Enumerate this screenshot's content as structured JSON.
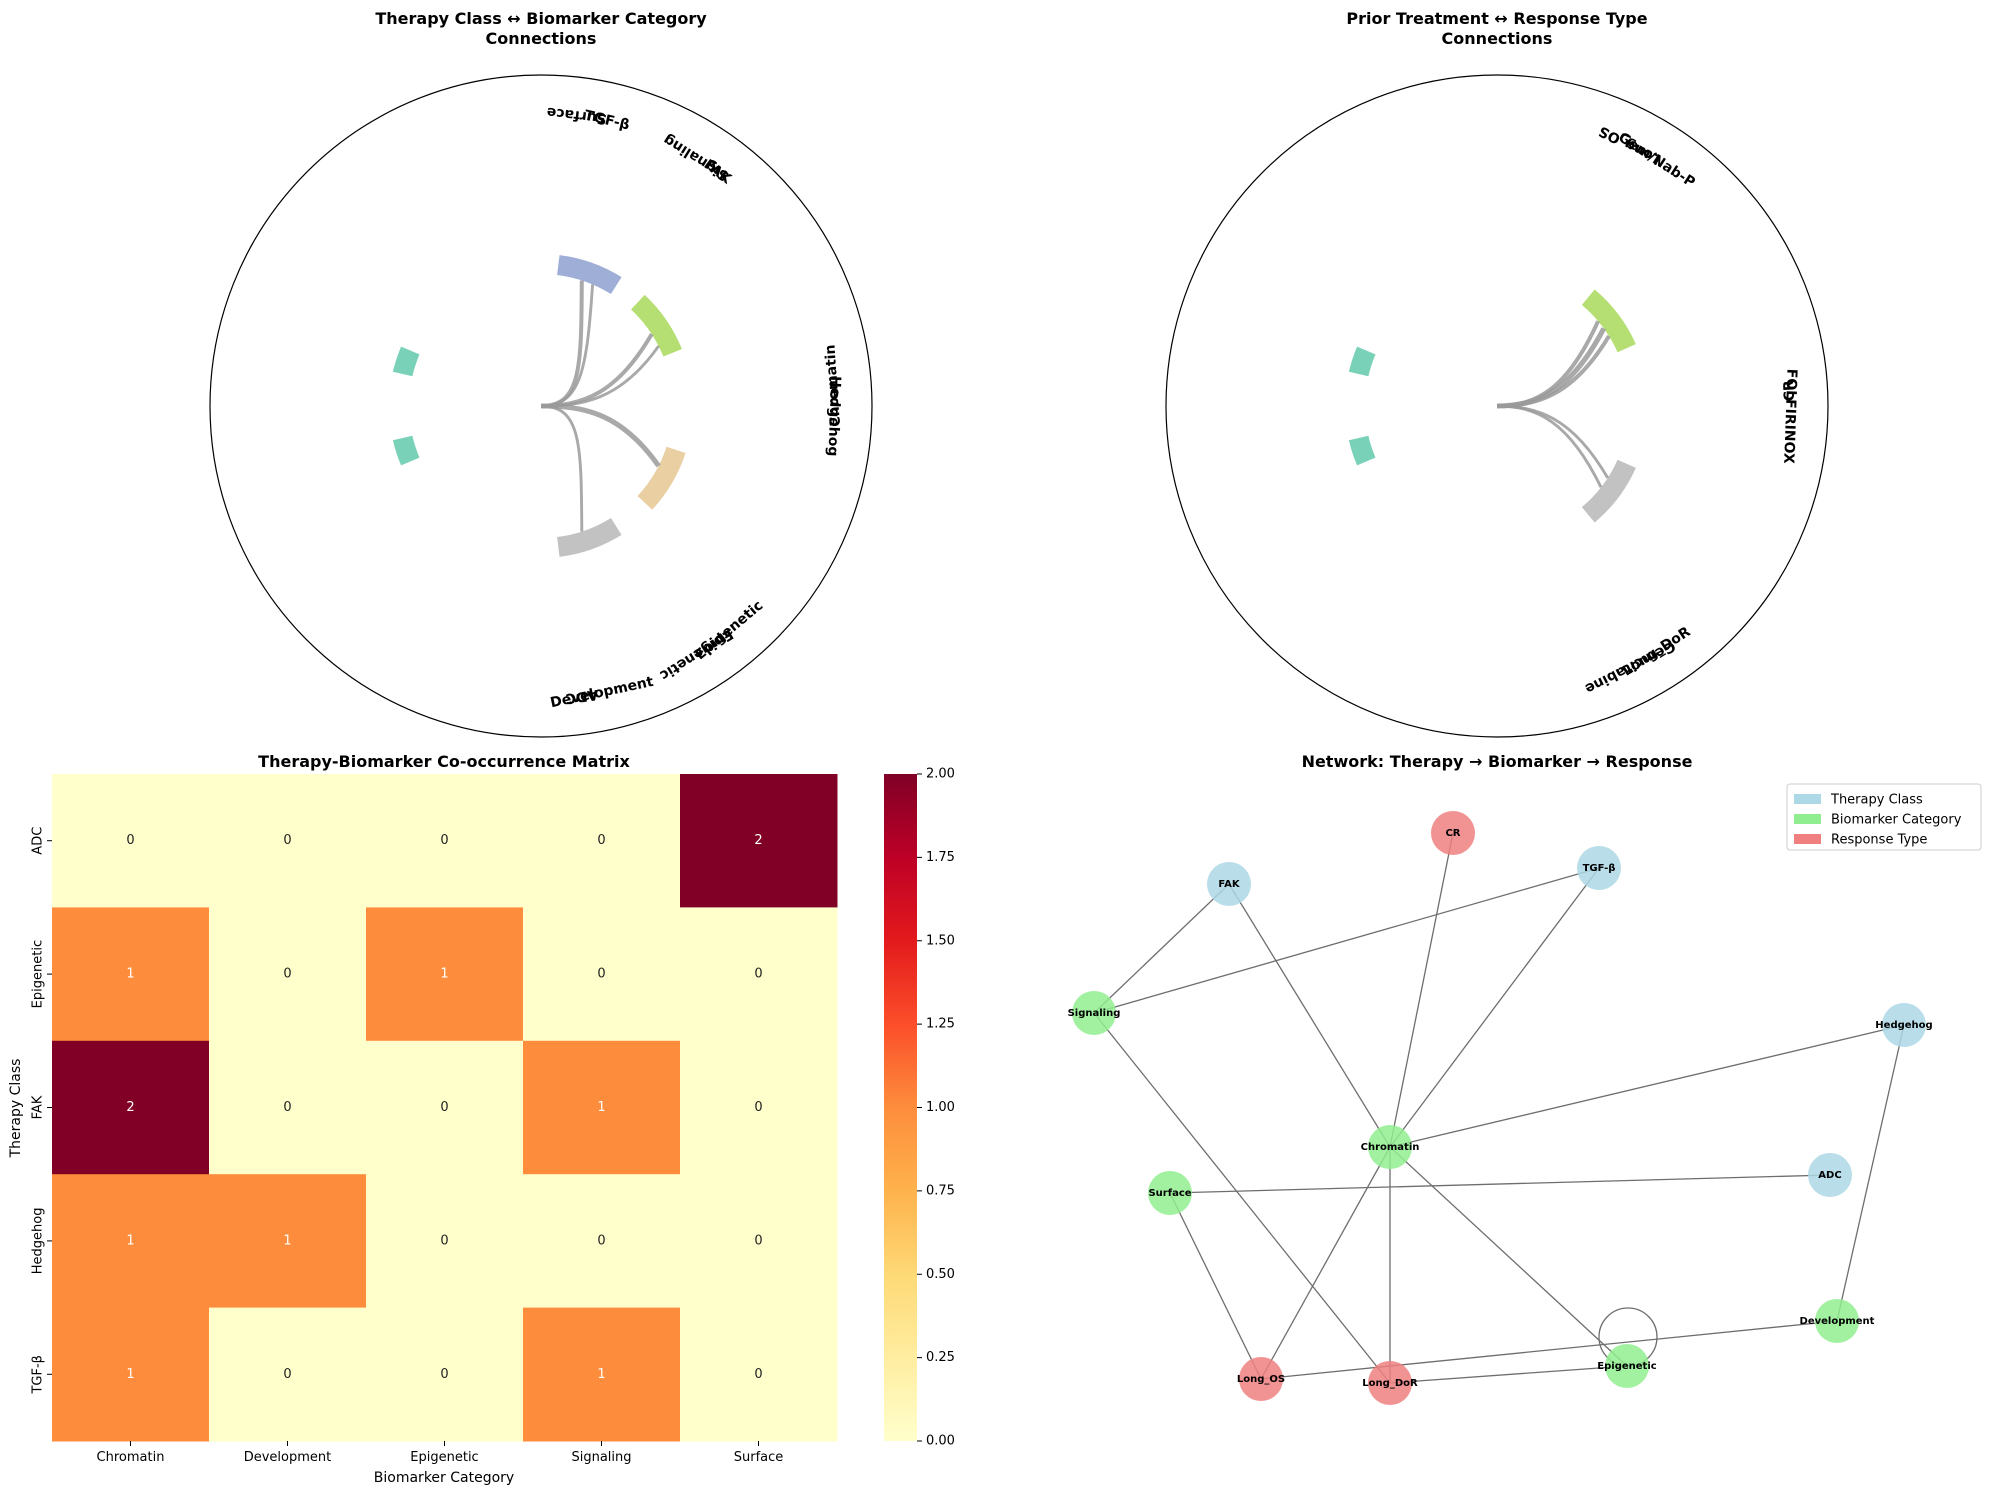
{
  "chart_data": [
    {
      "type": "chord",
      "title": "Therapy Class ↔ Biomarker Category\nConnections",
      "labels": [
        {
          "text": "TGF-β",
          "angle": 77,
          "flip": false
        },
        {
          "text": "Surface",
          "angle": 83,
          "flip": true
        },
        {
          "text": "FAK",
          "angle": 53,
          "flip": false
        },
        {
          "text": "Signaling",
          "angle": 58,
          "flip": true
        },
        {
          "text": "Hedgehog",
          "angle": -2,
          "flip": false
        },
        {
          "text": "Chromatin",
          "angle": 4,
          "flip": true
        },
        {
          "text": "Epigenetic",
          "angle": -58,
          "flip": false
        },
        {
          "text": "Epigenetic",
          "angle": -50,
          "flip": true
        },
        {
          "text": "Development",
          "angle": -78,
          "flip": true
        },
        {
          "text": "ADC",
          "angle": -82,
          "flip": false
        }
      ],
      "arcs": [
        {
          "color": "#9eaed6",
          "start": 58,
          "end": 83
        },
        {
          "color": "#b5df72",
          "start": 22,
          "end": 47
        },
        {
          "color": "#e9cfa2",
          "start": -43,
          "end": -18
        },
        {
          "color": "#c2c2c2",
          "start": -83,
          "end": -58
        },
        {
          "color": "#79d2b7",
          "start": 157,
          "end": 167
        },
        {
          "color": "#79d2b7",
          "start": 193,
          "end": 203
        }
      ],
      "links": [
        {
          "to": 72,
          "weight": 2
        },
        {
          "to": 67,
          "weight": 1
        },
        {
          "to": 33,
          "weight": 2
        },
        {
          "to": 27,
          "weight": 1
        },
        {
          "to": -27,
          "weight": 3
        },
        {
          "to": -72,
          "weight": 1
        }
      ]
    },
    {
      "type": "chord",
      "title": "Prior Treatment ↔ Response Type\nConnections",
      "labels": [
        {
          "text": "Gem/Nab-P",
          "angle": 57,
          "flip": false
        },
        {
          "text": "Long_OS",
          "angle": 63,
          "flip": true
        },
        {
          "text": "FOLFIRINOX",
          "angle": -2,
          "flip": false
        },
        {
          "text": "CR",
          "angle": 3,
          "flip": true
        },
        {
          "text": "Gemcitabine",
          "angle": -63,
          "flip": false
        },
        {
          "text": "Long_DoR",
          "angle": -57,
          "flip": true
        }
      ],
      "arcs": [
        {
          "color": "#b5df72",
          "start": 24,
          "end": 50
        },
        {
          "color": "#c2c2c2",
          "start": -50,
          "end": -24
        },
        {
          "color": "#79d2b7",
          "start": 157,
          "end": 167
        },
        {
          "color": "#79d2b7",
          "start": 193,
          "end": 203
        }
      ],
      "links": [
        {
          "to": 40,
          "weight": 2
        },
        {
          "to": 36,
          "weight": 3
        },
        {
          "to": 32,
          "weight": 2
        },
        {
          "to": -33,
          "weight": 1
        },
        {
          "to": -38,
          "weight": 1
        }
      ]
    },
    {
      "type": "heatmap",
      "title": "Therapy-Biomarker Co-occurrence Matrix",
      "xlabel": "Biomarker Category",
      "ylabel": "Therapy Class",
      "x": [
        "Chromatin",
        "Development",
        "Epigenetic",
        "Signaling",
        "Surface"
      ],
      "y": [
        "ADC",
        "Epigenetic",
        "FAK",
        "Hedgehog",
        "TGF-β"
      ],
      "values": [
        [
          0,
          0,
          0,
          0,
          2
        ],
        [
          1,
          0,
          1,
          0,
          0
        ],
        [
          2,
          0,
          0,
          1,
          0
        ],
        [
          1,
          1,
          0,
          0,
          0
        ],
        [
          1,
          0,
          0,
          1,
          0
        ]
      ],
      "colorbar": {
        "min": 0,
        "max": 2,
        "ticks": [
          "0.00",
          "0.25",
          "0.50",
          "0.75",
          "1.00",
          "1.25",
          "1.50",
          "1.75",
          "2.00"
        ],
        "colormap": "YlOrRd"
      }
    },
    {
      "type": "network",
      "title": "Network: Therapy → Biomarker → Response",
      "legend": [
        {
          "label": "Therapy Class",
          "color": "#add8e6"
        },
        {
          "label": "Biomarker Category",
          "color": "#90ee90"
        },
        {
          "label": "Response Type",
          "color": "#f08080"
        }
      ],
      "legend_position": "top-right",
      "nodes": [
        {
          "id": "CR",
          "group": "Response Type"
        },
        {
          "id": "FAK",
          "group": "Therapy Class"
        },
        {
          "id": "TGF-β",
          "group": "Therapy Class"
        },
        {
          "id": "Signaling",
          "group": "Biomarker Category"
        },
        {
          "id": "Hedgehog",
          "group": "Therapy Class"
        },
        {
          "id": "Chromatin",
          "group": "Biomarker Category"
        },
        {
          "id": "Surface",
          "group": "Biomarker Category"
        },
        {
          "id": "ADC",
          "group": "Therapy Class"
        },
        {
          "id": "Development",
          "group": "Biomarker Category"
        },
        {
          "id": "Epigenetic",
          "group": "Biomarker Category"
        },
        {
          "id": "Long_OS",
          "group": "Response Type"
        },
        {
          "id": "Long_DoR",
          "group": "Response Type"
        }
      ],
      "edges": [
        [
          "FAK",
          "Signaling"
        ],
        [
          "FAK",
          "Chromatin"
        ],
        [
          "TGF-β",
          "Signaling"
        ],
        [
          "TGF-β",
          "Chromatin"
        ],
        [
          "CR",
          "Chromatin"
        ],
        [
          "Hedgehog",
          "Chromatin"
        ],
        [
          "Hedgehog",
          "Development"
        ],
        [
          "ADC",
          "Surface"
        ],
        [
          "Signaling",
          "Long_DoR"
        ],
        [
          "Chromatin",
          "Long_OS"
        ],
        [
          "Chromatin",
          "Long_DoR"
        ],
        [
          "Chromatin",
          "Epigenetic"
        ],
        [
          "Surface",
          "Long_OS"
        ],
        [
          "Long_OS",
          "Development"
        ],
        [
          "Long_DoR",
          "Epigenetic"
        ],
        [
          "Epigenetic",
          "Epigenetic"
        ]
      ]
    }
  ]
}
